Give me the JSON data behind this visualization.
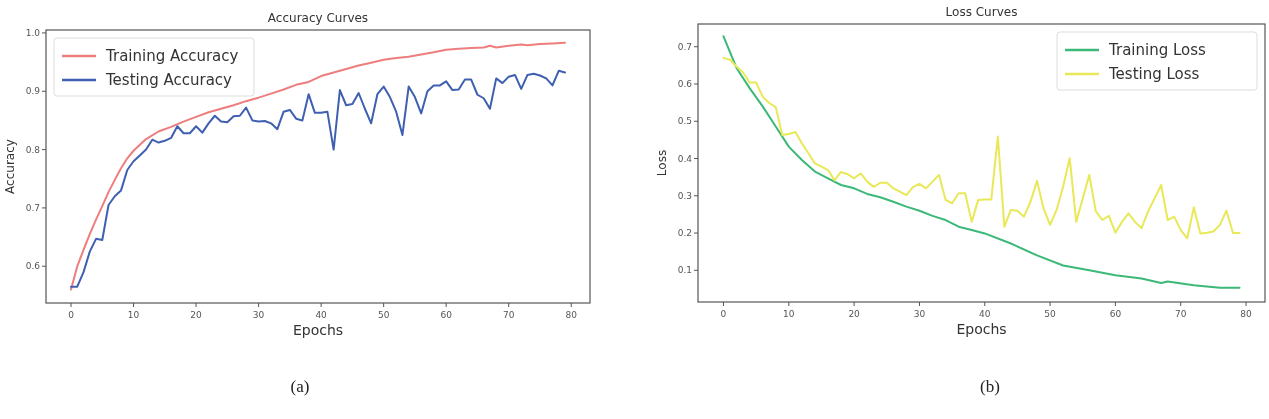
{
  "chart_data": [
    {
      "type": "line",
      "title": "Accuracy Curves",
      "xlabel": "Epochs",
      "ylabel": "Accuracy",
      "xlim": [
        -4,
        83
      ],
      "xticks": [
        0,
        10,
        20,
        30,
        40,
        50,
        60,
        70,
        80
      ],
      "ylim": [
        0.537,
        1.005
      ],
      "yticks": [
        0.6,
        0.7,
        0.8,
        0.9,
        {
          "value": 1,
          "label": "1.0"
        }
      ],
      "grid": false,
      "legend": "top left",
      "annotations": [
        "(a)"
      ],
      "series": [
        {
          "name": "Training Accuracy",
          "color": "#ee7d7d",
          "x": [
            0,
            1,
            2,
            3,
            4,
            5,
            6,
            7,
            8,
            9,
            10,
            12,
            14,
            16,
            18,
            20,
            22,
            24,
            26,
            28,
            30,
            32,
            34,
            36,
            38,
            40,
            42,
            44,
            46,
            48,
            50,
            52,
            54,
            56,
            58,
            60,
            62,
            64,
            66,
            67,
            68,
            70,
            72,
            73,
            75,
            77,
            79
          ],
          "values": [
            0.56,
            0.6,
            0.628,
            0.655,
            0.68,
            0.703,
            0.727,
            0.748,
            0.768,
            0.785,
            0.798,
            0.818,
            0.831,
            0.839,
            0.848,
            0.856,
            0.864,
            0.87,
            0.876,
            0.883,
            0.889,
            0.896,
            0.903,
            0.911,
            0.916,
            0.926,
            0.932,
            0.938,
            0.944,
            0.949,
            0.954,
            0.957,
            0.959,
            0.963,
            0.967,
            0.971,
            0.973,
            0.974,
            0.975,
            0.978,
            0.975,
            0.978,
            0.98,
            0.979,
            0.981,
            0.982,
            0.983
          ]
        },
        {
          "name": "Testing Accuracy",
          "color": "#3f5fb0",
          "x": [
            0,
            1,
            2,
            3,
            4,
            5,
            6,
            7,
            8,
            9,
            10,
            11,
            12,
            13,
            14,
            15,
            16,
            17,
            18,
            19,
            20,
            21,
            22,
            23,
            24,
            25,
            26,
            27,
            28,
            29,
            30,
            31,
            32,
            33,
            34,
            35,
            36,
            37,
            38,
            39,
            40,
            41,
            42,
            43,
            44,
            45,
            46,
            47,
            48,
            49,
            50,
            51,
            52,
            53,
            54,
            55,
            56,
            57,
            58,
            59,
            60,
            61,
            62,
            63,
            64,
            65,
            66,
            67,
            68,
            69,
            70,
            71,
            72,
            73,
            74,
            75,
            76,
            77,
            78,
            79
          ],
          "values": [
            0.565,
            0.565,
            0.59,
            0.625,
            0.647,
            0.645,
            0.705,
            0.72,
            0.73,
            0.765,
            0.78,
            0.79,
            0.8,
            0.817,
            0.812,
            0.815,
            0.82,
            0.84,
            0.828,
            0.828,
            0.84,
            0.829,
            0.845,
            0.858,
            0.848,
            0.847,
            0.857,
            0.858,
            0.872,
            0.85,
            0.848,
            0.849,
            0.845,
            0.835,
            0.865,
            0.868,
            0.853,
            0.85,
            0.895,
            0.863,
            0.863,
            0.865,
            0.8,
            0.902,
            0.876,
            0.878,
            0.897,
            0.87,
            0.845,
            0.895,
            0.908,
            0.89,
            0.865,
            0.825,
            0.908,
            0.89,
            0.862,
            0.9,
            0.91,
            0.91,
            0.917,
            0.902,
            0.903,
            0.92,
            0.92,
            0.894,
            0.888,
            0.87,
            0.922,
            0.914,
            0.925,
            0.928,
            0.904,
            0.928,
            0.93,
            0.927,
            0.922,
            0.91,
            0.935,
            0.932
          ]
        }
      ]
    },
    {
      "type": "line",
      "title": "Loss Curves",
      "xlabel": "Epochs",
      "ylabel": "Loss",
      "xlim": [
        -3.9,
        82.9
      ],
      "xticks": [
        0,
        10,
        20,
        30,
        40,
        50,
        60,
        70,
        80
      ],
      "ylim": [
        0.015,
        0.761
      ],
      "yticks": [
        0.1,
        0.2,
        0.3,
        0.4,
        0.5,
        0.6,
        0.7
      ],
      "grid": false,
      "legend": "top right",
      "annotations": [
        "(b)"
      ],
      "series": [
        {
          "name": "Training Loss",
          "color": "#3cb878",
          "x": [
            0,
            2,
            4,
            6,
            8,
            10,
            12,
            14,
            16,
            18,
            20,
            22,
            24,
            26,
            28,
            30,
            32,
            34,
            36,
            38,
            40,
            44,
            48,
            52,
            56,
            60,
            64,
            67,
            68,
            72,
            76,
            79
          ],
          "values": [
            0.728,
            0.643,
            0.589,
            0.54,
            0.486,
            0.432,
            0.396,
            0.365,
            0.347,
            0.329,
            0.32,
            0.305,
            0.296,
            0.284,
            0.271,
            0.26,
            0.246,
            0.235,
            0.217,
            0.208,
            0.199,
            0.172,
            0.14,
            0.113,
            0.1,
            0.087,
            0.078,
            0.066,
            0.07,
            0.06,
            0.053,
            0.053
          ]
        },
        {
          "name": "Testing Loss",
          "color": "#e8e858",
          "x": [
            0,
            1,
            2,
            3,
            4,
            5,
            6,
            7,
            8,
            9,
            10,
            11,
            12,
            13,
            14,
            15,
            16,
            17,
            18,
            19,
            20,
            21,
            22,
            23,
            24,
            25,
            26,
            27,
            28,
            29,
            30,
            31,
            32,
            33,
            34,
            35,
            36,
            37,
            38,
            39,
            40,
            41,
            42,
            43,
            44,
            45,
            46,
            47,
            48,
            49,
            50,
            51,
            52,
            53,
            54,
            55,
            56,
            57,
            58,
            59,
            60,
            61,
            62,
            63,
            64,
            65,
            66,
            67,
            68,
            69,
            70,
            71,
            72,
            73,
            74,
            75,
            76,
            77,
            78,
            79
          ],
          "values": [
            0.67,
            0.665,
            0.647,
            0.631,
            0.604,
            0.604,
            0.566,
            0.549,
            0.538,
            0.463,
            0.466,
            0.471,
            0.441,
            0.414,
            0.387,
            0.378,
            0.369,
            0.342,
            0.364,
            0.358,
            0.347,
            0.36,
            0.338,
            0.324,
            0.335,
            0.335,
            0.32,
            0.311,
            0.302,
            0.323,
            0.332,
            0.32,
            0.338,
            0.356,
            0.289,
            0.28,
            0.307,
            0.307,
            0.23,
            0.289,
            0.29,
            0.29,
            0.459,
            0.217,
            0.262,
            0.26,
            0.244,
            0.284,
            0.34,
            0.266,
            0.222,
            0.262,
            0.325,
            0.401,
            0.23,
            0.293,
            0.356,
            0.258,
            0.235,
            0.246,
            0.201,
            0.23,
            0.253,
            0.23,
            0.213,
            0.258,
            0.293,
            0.329,
            0.235,
            0.244,
            0.208,
            0.186,
            0.269,
            0.199,
            0.201,
            0.204,
            0.222,
            0.26,
            0.2,
            0.2
          ]
        }
      ]
    }
  ]
}
